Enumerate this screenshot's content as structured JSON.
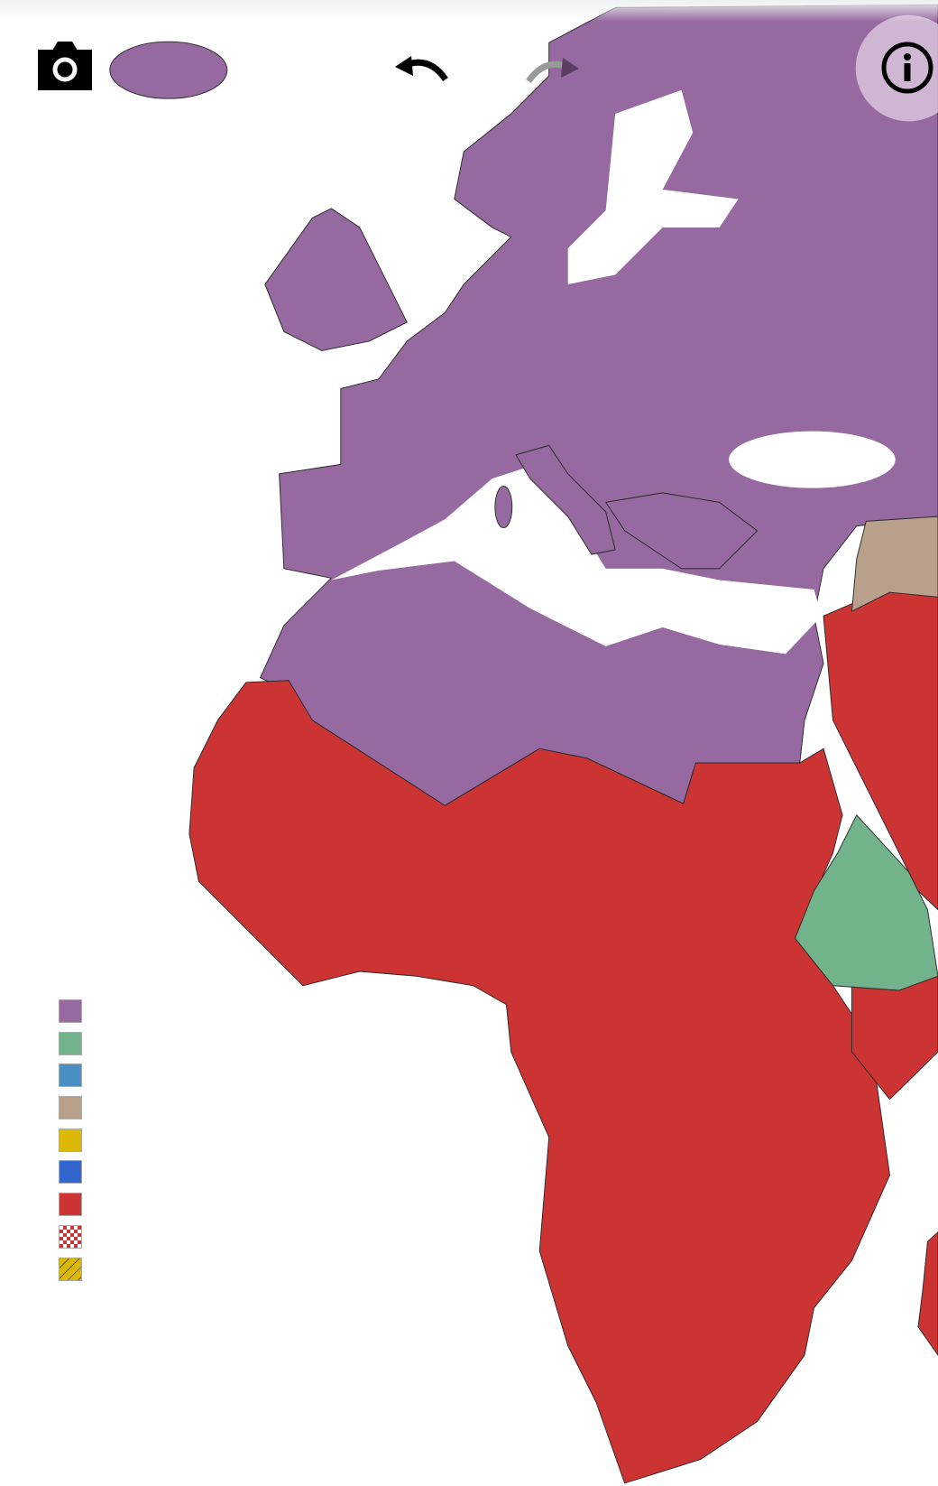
{
  "toolbar": {
    "icons": [
      "camera-icon",
      "undo-icon",
      "redo-icon",
      "info-icon"
    ],
    "redo_enabled": false
  },
  "map": {
    "colors": {
      "europe_north_africa": "#9669a0",
      "sub_saharan_africa": "#cc3333",
      "ethiopia": "#72b38b",
      "middle_east": "#b9a08a",
      "borders": "#2a2a2a",
      "water": "#ffffff"
    }
  },
  "legend": {
    "swatches": [
      {
        "color": "#9669a0",
        "pattern": "solid"
      },
      {
        "color": "#72b38b",
        "pattern": "solid"
      },
      {
        "color": "#4a8fc4",
        "pattern": "solid"
      },
      {
        "color": "#b9a08a",
        "pattern": "solid"
      },
      {
        "color": "#dcb800",
        "pattern": "solid"
      },
      {
        "color": "#3366cc",
        "pattern": "solid"
      },
      {
        "color": "#cc3333",
        "pattern": "solid"
      },
      {
        "color": "#cc3333",
        "pattern": "checkered"
      },
      {
        "color": "#dcb800",
        "pattern": "hatched"
      }
    ]
  }
}
